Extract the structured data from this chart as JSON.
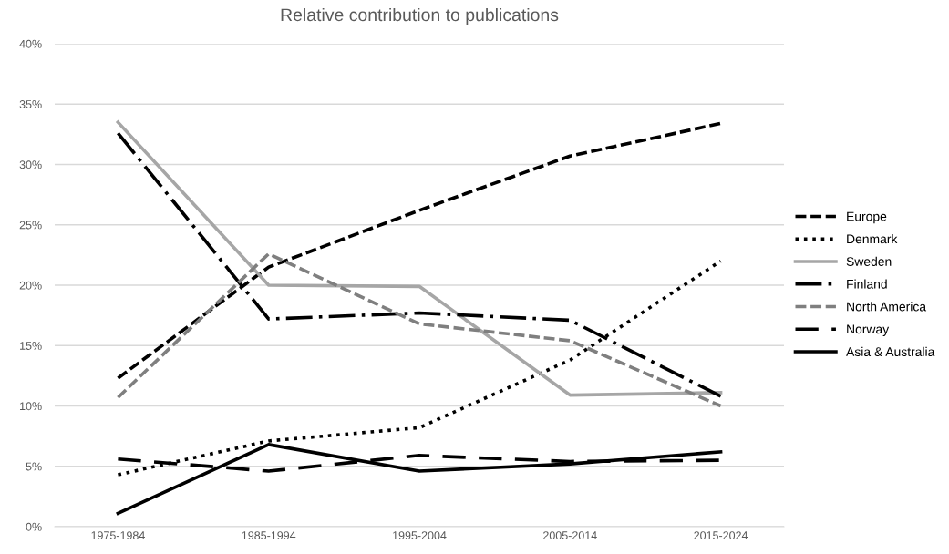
{
  "chart_data": {
    "type": "line",
    "title": "Relative contribution to publications",
    "categories": [
      "1975-1984",
      "1985-1994",
      "1995-2004",
      "2005-2014",
      "2015-2024"
    ],
    "series": [
      {
        "name": "Europe",
        "color": "#000000",
        "line_style": "dashed",
        "values": [
          12.3,
          21.5,
          26.2,
          30.7,
          33.4
        ]
      },
      {
        "name": "Denmark",
        "color": "#000000",
        "line_style": "dotted",
        "values": [
          4.3,
          7.1,
          8.2,
          13.8,
          22.0
        ]
      },
      {
        "name": "Sweden",
        "color": "#a6a6a6",
        "line_style": "solid",
        "values": [
          33.5,
          20.0,
          19.9,
          10.9,
          11.1
        ]
      },
      {
        "name": "Finland",
        "color": "#000000",
        "line_style": "dashdot",
        "values": [
          32.6,
          17.2,
          17.7,
          17.1,
          10.8
        ]
      },
      {
        "name": "North America",
        "color": "#7f7f7f",
        "line_style": "dashed",
        "values": [
          10.7,
          22.6,
          16.8,
          15.4,
          10.0
        ]
      },
      {
        "name": "Norway",
        "color": "#000000",
        "line_style": "longdash",
        "values": [
          5.6,
          4.6,
          5.9,
          5.4,
          5.5
        ]
      },
      {
        "name": "Asia & Australia",
        "color": "#000000",
        "line_style": "solid",
        "values": [
          1.1,
          6.8,
          4.6,
          5.2,
          6.2
        ]
      }
    ],
    "ylim": [
      0,
      40
    ],
    "yticks": [
      {
        "value": 0,
        "label": "0%"
      },
      {
        "value": 5,
        "label": "5%"
      },
      {
        "value": 10,
        "label": "10%"
      },
      {
        "value": 15,
        "label": "15%"
      },
      {
        "value": 20,
        "label": "20%"
      },
      {
        "value": 25,
        "label": "25%"
      },
      {
        "value": 30,
        "label": "30%"
      },
      {
        "value": 35,
        "label": "35%"
      },
      {
        "value": 40,
        "label": "40%"
      }
    ],
    "grid": "y",
    "legend": "right",
    "marker": "none"
  }
}
